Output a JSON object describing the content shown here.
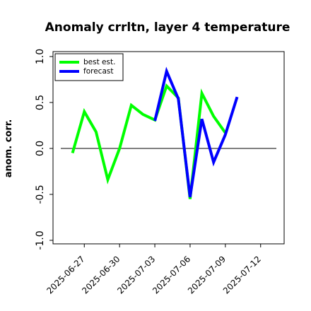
{
  "chart_data": {
    "type": "line",
    "title": "Anomaly crrltn, layer 4 temperature",
    "xlabel": "",
    "ylabel": "anom. corr.",
    "ylim": [
      -1.0,
      1.0
    ],
    "yticks": [
      "1.0",
      "0.5",
      "0.0",
      "-0.5",
      "-1.0"
    ],
    "ytick_values": [
      1.0,
      0.5,
      0.0,
      -0.5,
      -1.0
    ],
    "xlim": [
      "2025-06-25",
      "2025-07-14"
    ],
    "xticks": [
      "2025-06-27",
      "2025-06-30",
      "2025-07-03",
      "2025-07-06",
      "2025-07-09",
      "2025-07-12"
    ],
    "highlighted_xtick": "2025-07-03",
    "highlight_color": "#2e8b57",
    "legend_position": "upper left",
    "grid": false,
    "zero_line": true,
    "series": [
      {
        "name": "best est.",
        "color": "#00ff00",
        "x": [
          "2025-06-26",
          "2025-06-27",
          "2025-06-28",
          "2025-06-29",
          "2025-06-30",
          "2025-07-01",
          "2025-07-02",
          "2025-07-03",
          "2025-07-04",
          "2025-07-05",
          "2025-07-06",
          "2025-07-07",
          "2025-07-08",
          "2025-07-09"
        ],
        "values": [
          -0.05,
          0.4,
          0.18,
          -0.34,
          0.0,
          0.47,
          0.37,
          0.31,
          0.68,
          0.55,
          -0.55,
          0.6,
          0.35,
          0.17
        ]
      },
      {
        "name": "forecast",
        "color": "#0000ff",
        "x": [
          "2025-07-03",
          "2025-07-04",
          "2025-07-05",
          "2025-07-06",
          "2025-07-07",
          "2025-07-08",
          "2025-07-09",
          "2025-07-10"
        ],
        "values": [
          0.3,
          0.84,
          0.54,
          -0.53,
          0.32,
          -0.15,
          0.15,
          0.56
        ]
      }
    ]
  }
}
